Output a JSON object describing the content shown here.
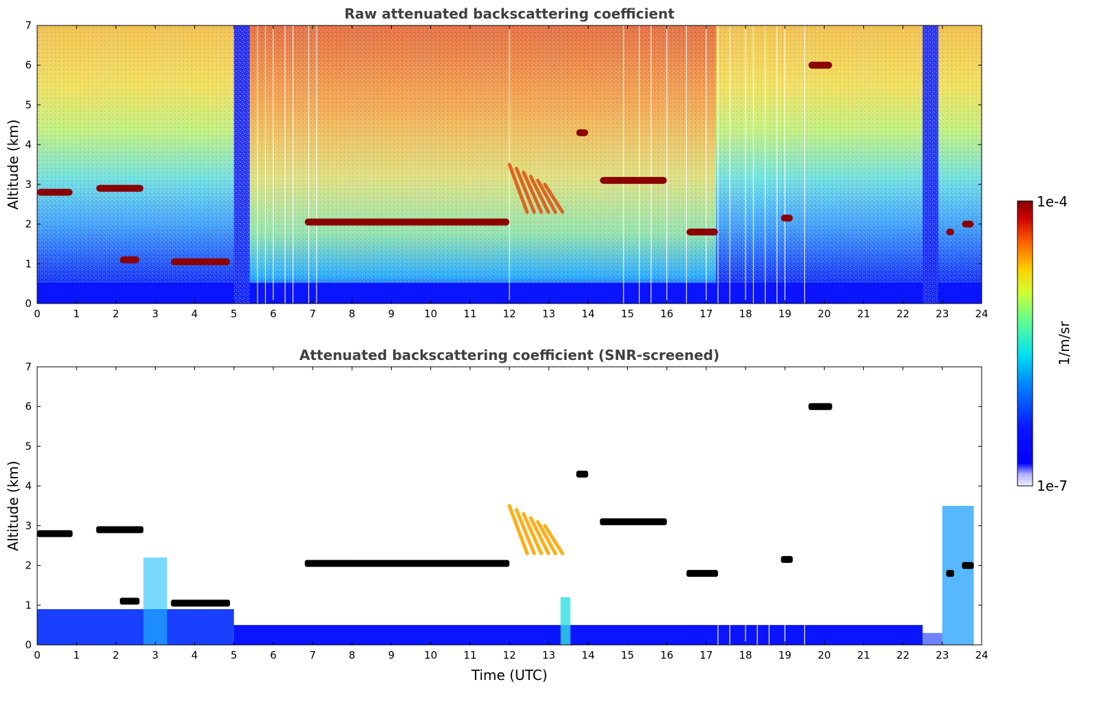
{
  "colors": {
    "background": "#ffffff",
    "title_text": "#404040",
    "low_signal": "#0a14ff",
    "cloud": "#8b0000",
    "aerosol": "#ffa500",
    "screened_cloud": "#000000"
  },
  "colorbar": {
    "max_label": "1e-4",
    "min_label": "1e-7",
    "unit_label": "1/m/sr",
    "scale": "log",
    "colormap": "jet",
    "range": [
      1e-07,
      0.0001
    ]
  },
  "chart_data": [
    {
      "type": "heatmap",
      "title": "Raw attenuated backscattering coefficient",
      "xlabel": "",
      "ylabel": "Altitude (km)",
      "xlim": [
        0,
        24
      ],
      "ylim": [
        0,
        7
      ],
      "xticks": [
        "0",
        "1",
        "2",
        "3",
        "4",
        "5",
        "6",
        "7",
        "8",
        "9",
        "10",
        "11",
        "12",
        "13",
        "14",
        "15",
        "16",
        "17",
        "18",
        "19",
        "20",
        "21",
        "22",
        "23",
        "24"
      ],
      "yticks": [
        "0",
        "1",
        "2",
        "3",
        "4",
        "5",
        "6",
        "7"
      ],
      "grid": false,
      "cloud_layers": [
        {
          "t0": 0.0,
          "t1": 0.9,
          "alt": 2.8
        },
        {
          "t0": 1.5,
          "t1": 2.7,
          "alt": 2.9
        },
        {
          "t0": 2.1,
          "t1": 2.6,
          "alt": 1.1
        },
        {
          "t0": 3.4,
          "t1": 4.9,
          "alt": 1.05
        },
        {
          "t0": 6.8,
          "t1": 12.0,
          "alt": 2.05
        },
        {
          "t0": 13.7,
          "t1": 14.0,
          "alt": 4.3
        },
        {
          "t0": 14.3,
          "t1": 16.0,
          "alt": 3.1
        },
        {
          "t0": 19.6,
          "t1": 20.2,
          "alt": 6.0
        },
        {
          "t0": 16.5,
          "t1": 17.3,
          "alt": 1.8
        },
        {
          "t0": 18.9,
          "t1": 19.2,
          "alt": 2.15
        },
        {
          "t0": 23.1,
          "t1": 23.3,
          "alt": 1.8
        },
        {
          "t0": 23.5,
          "t1": 23.8,
          "alt": 2.0
        }
      ],
      "aerosol_fallstreak": {
        "t0": 12.0,
        "t1": 13.2,
        "alt_top": 3.5,
        "alt_bottom": 2.0
      },
      "boundary_layer_top_km": 0.5,
      "low_signal_periods": [
        [
          5.0,
          5.4
        ],
        [
          22.5,
          22.9
        ]
      ]
    },
    {
      "type": "heatmap",
      "title": "Attenuated backscattering coefficient (SNR-screened)",
      "xlabel": "Time (UTC)",
      "ylabel": "Altitude (km)",
      "xlim": [
        0,
        24
      ],
      "ylim": [
        0,
        7
      ],
      "xticks": [
        "0",
        "1",
        "2",
        "3",
        "4",
        "5",
        "6",
        "7",
        "8",
        "9",
        "10",
        "11",
        "12",
        "13",
        "14",
        "15",
        "16",
        "17",
        "18",
        "19",
        "20",
        "21",
        "22",
        "23",
        "24"
      ],
      "yticks": [
        "0",
        "1",
        "2",
        "3",
        "4",
        "5",
        "6",
        "7"
      ],
      "grid": false,
      "boundary_layer_top_km": 0.9
    }
  ]
}
